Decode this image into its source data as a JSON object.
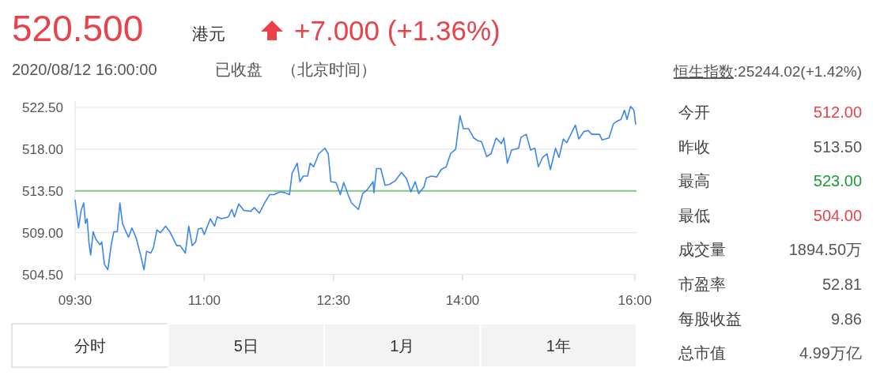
{
  "chart_data": {
    "type": "line",
    "title": "520.500",
    "annotations": [
      "港元",
      "+7.000 (+1.36%)",
      "2020/08/12 16:00:00",
      "已收盘",
      "（北京时间）",
      "恒生指数",
      ":25244.02(+1.42%)",
      "今开",
      "512.00",
      "昨收",
      "513.50",
      "最高",
      "523.00",
      "最低",
      "504.00",
      "成交量",
      "1894.50万",
      "市盈率",
      "52.81",
      "每股收益",
      "9.86",
      "总市值",
      "4.99万亿",
      "分时",
      "5日",
      "1月",
      "1年"
    ],
    "x": [
      9.5,
      9.54,
      9.57,
      9.6,
      9.62,
      9.64,
      9.66,
      9.68,
      9.71,
      9.74,
      9.79,
      9.81,
      9.84,
      9.88,
      9.92,
      9.95,
      9.99,
      10.02,
      10.05,
      10.09,
      10.12,
      10.16,
      10.21,
      10.26,
      10.3,
      10.33,
      10.38,
      10.41,
      10.45,
      10.49,
      10.55,
      10.6,
      10.68,
      10.72,
      10.78,
      10.82,
      10.86,
      10.9,
      10.93,
      10.97,
      11.0,
      11.07,
      11.12,
      11.15,
      11.2,
      11.28,
      11.32,
      11.35,
      11.4,
      11.46,
      11.54,
      11.58,
      11.64,
      11.7,
      11.76,
      11.81,
      11.88,
      11.94,
      11.99,
      12.02,
      12.08,
      12.11,
      12.15,
      12.2,
      12.23,
      12.27,
      12.33,
      12.4,
      12.44,
      12.47,
      12.53,
      12.58,
      12.62,
      12.67,
      12.71,
      12.79,
      12.84,
      12.9,
      12.96,
      12.97,
      13.0,
      13.05,
      13.1,
      13.15,
      13.22,
      13.29,
      13.35,
      13.4,
      13.45,
      13.49,
      13.55,
      13.58,
      13.64,
      13.7,
      13.75,
      13.81,
      13.86,
      13.92,
      13.97,
      14.01,
      14.07,
      14.13,
      14.18,
      14.22,
      14.28,
      14.33,
      14.39,
      14.45,
      14.48,
      14.52,
      14.57,
      14.65,
      14.68,
      14.74,
      14.79,
      14.84,
      14.88,
      14.93,
      14.98,
      15.02,
      15.08,
      15.12,
      15.17,
      15.21,
      15.31,
      15.35,
      15.41,
      15.46,
      15.5,
      15.59,
      15.62,
      15.7,
      15.75,
      15.79,
      15.84,
      15.88,
      15.91,
      15.95,
      15.99,
      16.01
    ],
    "series": [
      {
        "color": "#3c86f0",
        "values": [
          512.5,
          509.5,
          511.4,
          512.2,
          510,
          510.5,
          508,
          506.6,
          509.1,
          508.3,
          507.7,
          508,
          505.6,
          505,
          507.7,
          509.1,
          509.1,
          512.2,
          510,
          509.1,
          508.5,
          509.5,
          508.4,
          506.6,
          505,
          507,
          506.8,
          507.4,
          509.3,
          509,
          509.7,
          509.1,
          507.6,
          507.6,
          506.8,
          509.7,
          507.6,
          508,
          509.4,
          509.5,
          508.8,
          510.5,
          509.7,
          510.7,
          510.5,
          510.7,
          511.5,
          510.7,
          512.1,
          511.4,
          511.3,
          511.7,
          511.1,
          512.2,
          513.1,
          513.1,
          513.4,
          513.3,
          513.1,
          515.4,
          516.5,
          514.5,
          515.1,
          515.1,
          516.5,
          516.1,
          517.5,
          518.1,
          517.5,
          514.5,
          514.4,
          513.1,
          514.4,
          513.1,
          512.2,
          511.5,
          513.2,
          513.7,
          514.5,
          513.3,
          515.9,
          515.9,
          514.1,
          514.2,
          514.6,
          515.5,
          514.8,
          513.4,
          514.5,
          513.2,
          513.9,
          514.9,
          515.1,
          515,
          515.8,
          516.1,
          517.5,
          518,
          521.6,
          520.2,
          520.2,
          519.2,
          518.9,
          518.8,
          517.2,
          517.5,
          519.2,
          518.6,
          519.2,
          516.5,
          517.9,
          518.1,
          519.3,
          519.6,
          517.9,
          518.1,
          516.1,
          517.1,
          517.5,
          515.8,
          518.1,
          517.1,
          519.1,
          518.7,
          520.6,
          519.1,
          519.9,
          520,
          519.6,
          519.6,
          519,
          519.2,
          520.7,
          521,
          521.2,
          522.2,
          521.2,
          522.6,
          522.2,
          520.7
        ]
      }
    ],
    "xlim": [
      9.5,
      16.02
    ],
    "xticks": [
      {
        "value": 9.5,
        "label": "09:30"
      },
      {
        "value": 11,
        "label": "11:00"
      },
      {
        "value": 12.5,
        "label": "12:30"
      },
      {
        "value": 14,
        "label": "14:00"
      },
      {
        "value": 16,
        "label": "16:00"
      }
    ],
    "ylim": [
      504.5,
      523.2
    ],
    "yticks": [
      {
        "value": 504.5,
        "label": "504.50"
      },
      {
        "value": 509,
        "label": "509.00"
      },
      {
        "value": 513.5,
        "label": "513.50"
      },
      {
        "value": 518,
        "label": "518.00"
      },
      {
        "value": 522.5,
        "label": "522.50"
      }
    ],
    "grid": "y",
    "ref_lines": [
      {
        "axis": "y",
        "value": 513.5,
        "color": "#86c386"
      }
    ]
  }
}
